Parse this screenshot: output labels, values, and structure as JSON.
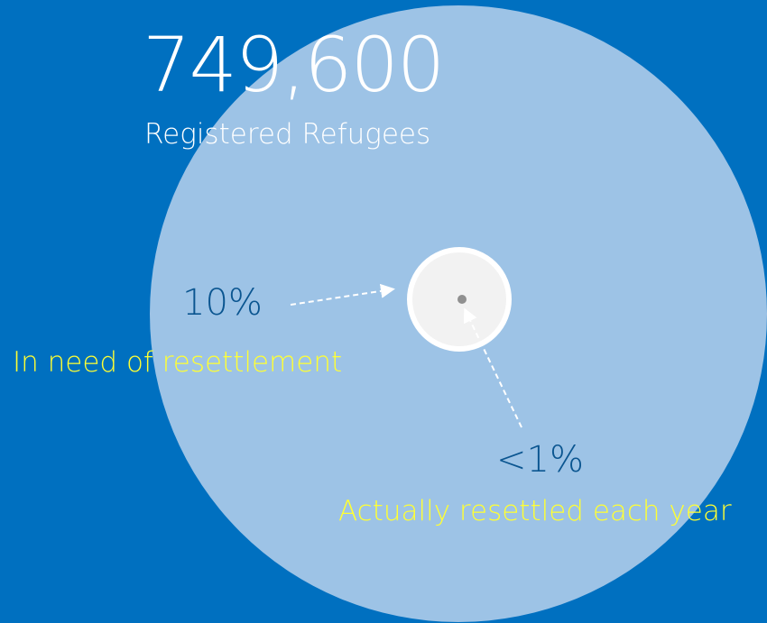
{
  "headline": {
    "value": "749,600",
    "caption": "Registered Refugees"
  },
  "need": {
    "percent": "10%",
    "label": "In need of resettlement"
  },
  "resettled": {
    "percent": "<1%",
    "label": "Actually resettled each year"
  },
  "colors": {
    "background": "#0070c0",
    "outer_circle": "#9dc3e6",
    "inner_circle": "#f2f2f2",
    "number_text": "#0a5590",
    "label_text": "#ffff33"
  }
}
